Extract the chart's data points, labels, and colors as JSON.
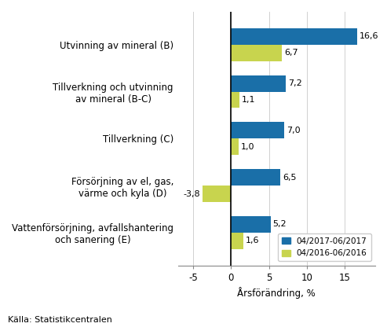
{
  "categories": [
    "Vattenförsörjning, avfallshantering\noch sanering (E)",
    "Försörjning av el, gas,\nvärme och kyla (D)",
    "Tillverkning (C)",
    "Tillverkning och utvinning\nav mineral (B-C)",
    "Utvinning av mineral (B)"
  ],
  "series_2017": [
    5.2,
    6.5,
    7.0,
    7.2,
    16.6
  ],
  "series_2016": [
    1.6,
    -3.8,
    1.0,
    1.1,
    6.7
  ],
  "color_2017": "#1a6fa8",
  "color_2016": "#c8d44e",
  "xlabel": "Årsförändring, %",
  "legend_2017": "04/2017-06/2017",
  "legend_2016": "04/2016-06/2016",
  "source": "Källa: Statistikcentralen",
  "xlim": [
    -7,
    19
  ],
  "xticks": [
    -5,
    0,
    5,
    10,
    15
  ],
  "bar_height": 0.35,
  "label_fontsize": 8.0,
  "tick_fontsize": 8.5
}
